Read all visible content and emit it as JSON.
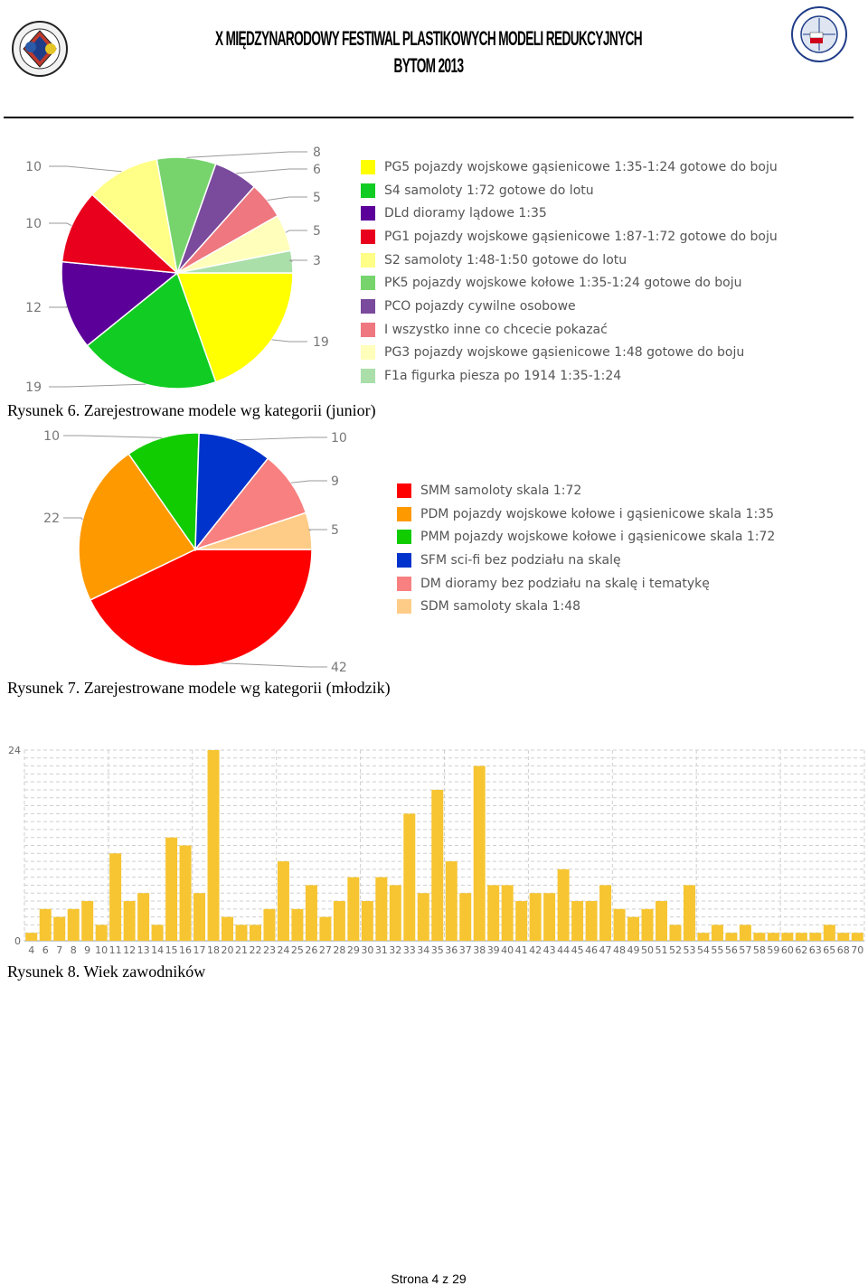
{
  "header": {
    "title_line1": "X MIĘDZYNARODOWY FESTIWAL PLASTIKOWYCH MODELI REDUKCYJNYCH",
    "title_line2": "BYTOM 2013"
  },
  "captions": {
    "fig6": "Rysunek 6. Zarejestrowane modele wg kategorii (junior)",
    "fig7": "Rysunek 7. Zarejestrowane modele wg kategorii (młodzik)",
    "fig8": "Rysunek 8. Wiek zawodników"
  },
  "footer": {
    "page": "Strona 4 z 29"
  },
  "chart_data": [
    {
      "type": "pie",
      "id": "fig6",
      "categories": [
        "PG5 pojazdy wojskowe gąsienicowe 1:35-1:24 gotowe do boju",
        "S4 samoloty 1:72 gotowe do lotu",
        "DLd dioramy lądowe 1:35",
        "PG1 pojazdy wojskowe gąsienicowe 1:87-1:72 gotowe do boju",
        "S2 samoloty 1:48-1:50 gotowe do lotu",
        "PK5 pojazdy wojskowe kołowe 1:35-1:24 gotowe do boju",
        "PCO pojazdy cywilne osobowe",
        "I wszystko inne co chcecie pokazać",
        "PG3 pojazdy wojskowe gąsienicowe 1:48 gotowe do boju",
        "F1a figurka piesza po 1914 1:35-1:24"
      ],
      "values": [
        19,
        19,
        12,
        10,
        10,
        8,
        6,
        5,
        5,
        3
      ],
      "colors": [
        "#ffff00",
        "#11cc22",
        "#5b0099",
        "#e8001c",
        "#ffff88",
        "#77d46d",
        "#7a4a9c",
        "#ee7780",
        "#ffffbb",
        "#aadfaa"
      ],
      "legend_position": "right"
    },
    {
      "type": "pie",
      "id": "fig7",
      "categories": [
        "SMM samoloty skala 1:72",
        "PDM pojazdy wojskowe kołowe i gąsienicowe skala 1:35",
        "PMM pojazdy wojskowe kołowe i gąsienicowe skala 1:72",
        "SFM sci-fi bez podziału na skalę",
        "DM dioramy bez podziału na skalę i tematykę",
        "SDM samoloty skala 1:48"
      ],
      "values": [
        42,
        22,
        10,
        10,
        9,
        5
      ],
      "colors": [
        "#ff0000",
        "#ff9900",
        "#11cc00",
        "#0033cc",
        "#f88080",
        "#ffcc88"
      ],
      "legend_position": "right"
    },
    {
      "type": "bar",
      "id": "fig8",
      "categories": [
        "4",
        "6",
        "7",
        "8",
        "9",
        "10",
        "11",
        "12",
        "13",
        "14",
        "15",
        "16",
        "17",
        "18",
        "20",
        "21",
        "22",
        "23",
        "24",
        "25",
        "26",
        "27",
        "28",
        "29",
        "30",
        "31",
        "32",
        "33",
        "34",
        "35",
        "36",
        "37",
        "38",
        "39",
        "40",
        "41",
        "42",
        "43",
        "44",
        "45",
        "46",
        "47",
        "48",
        "49",
        "50",
        "51",
        "52",
        "53",
        "54",
        "55",
        "56",
        "57",
        "58",
        "59",
        "60",
        "62",
        "63",
        "65",
        "68",
        "70"
      ],
      "values": [
        1,
        4,
        3,
        4,
        5,
        2,
        11,
        5,
        6,
        2,
        13,
        12,
        6,
        24,
        3,
        2,
        2,
        4,
        10,
        4,
        7,
        3,
        5,
        8,
        5,
        8,
        7,
        16,
        6,
        19,
        10,
        6,
        22,
        7,
        7,
        5,
        6,
        6,
        9,
        5,
        5,
        7,
        4,
        3,
        4,
        5,
        2,
        7,
        1,
        2,
        1,
        2,
        1,
        1,
        1,
        1,
        1,
        2,
        1,
        1
      ],
      "ylim": [
        0,
        24
      ],
      "ytick_labels": [
        "0",
        "24"
      ],
      "color": "#f6c531",
      "grid": true
    }
  ]
}
